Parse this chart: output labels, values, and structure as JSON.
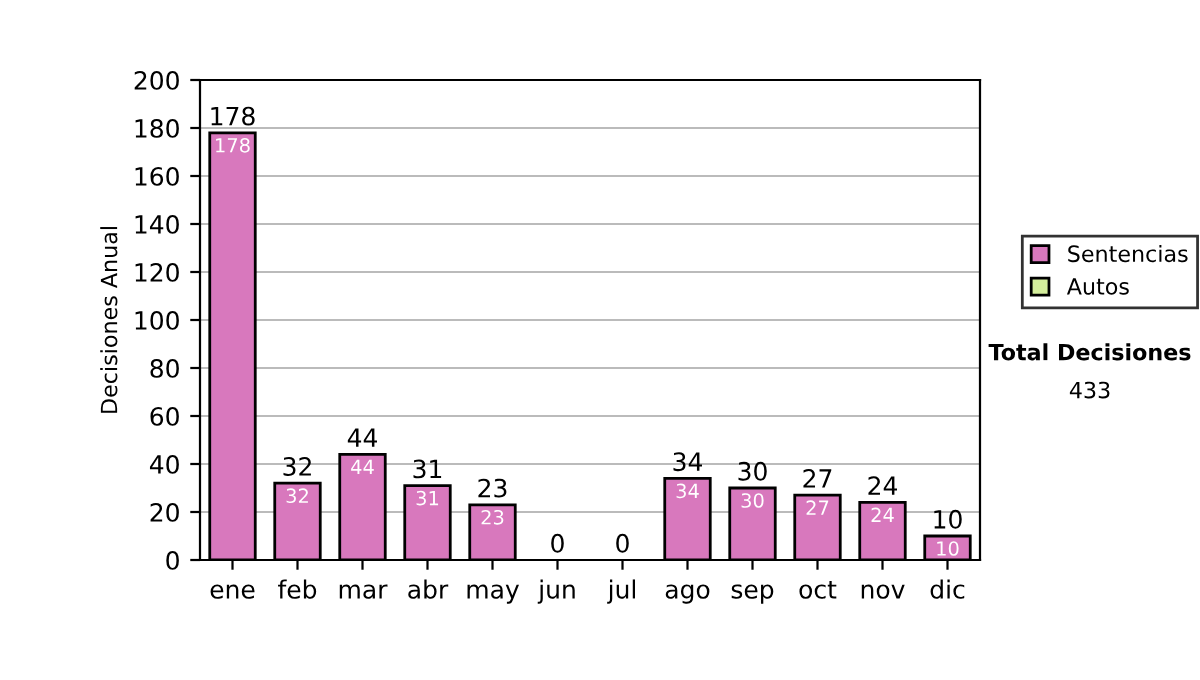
{
  "chart_data": {
    "type": "bar",
    "ylabel": "Decisiones Anual",
    "categories": [
      "ene",
      "feb",
      "mar",
      "abr",
      "may",
      "jun",
      "jul",
      "ago",
      "sep",
      "oct",
      "nov",
      "dic"
    ],
    "stacked": true,
    "series": [
      {
        "name": "Sentencias",
        "color": "#d878bd",
        "values": [
          178,
          32,
          44,
          31,
          23,
          0,
          0,
          34,
          30,
          27,
          24,
          10
        ],
        "value_labels": [
          "178",
          "32",
          "44",
          "31",
          "23",
          null,
          null,
          "34",
          "30",
          "27",
          "24",
          "10"
        ]
      },
      {
        "name": "Autos",
        "color": "#d4ee9c",
        "values": [
          0,
          0,
          0,
          0,
          0,
          0,
          0,
          0,
          0,
          0,
          0,
          0
        ]
      }
    ],
    "totals": [
      "178",
      "32",
      "44",
      "31",
      "23",
      "0",
      "0",
      "34",
      "30",
      "27",
      "24",
      "10"
    ],
    "ylim": [
      0,
      200
    ],
    "yticks": [
      0,
      20,
      40,
      60,
      80,
      100,
      120,
      140,
      160,
      180,
      200
    ],
    "grid": "y",
    "legend": "right",
    "annotations": [
      "Total Decisiones",
      "433"
    ]
  }
}
